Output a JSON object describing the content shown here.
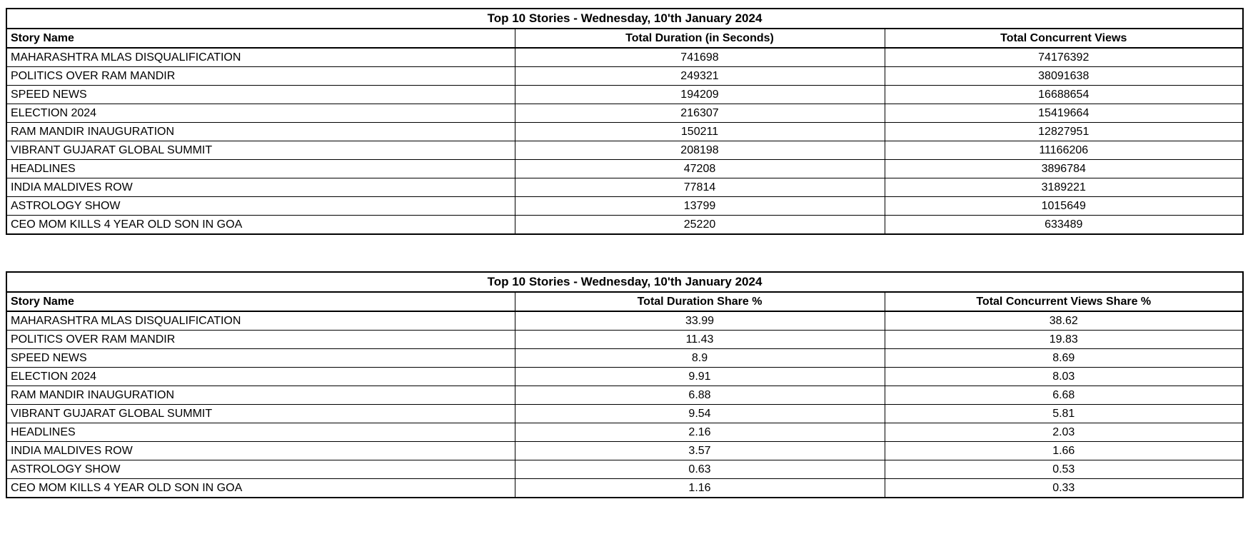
{
  "page": {
    "background_color": "#ffffff",
    "table_border_color": "#000000",
    "text_color": "#000000"
  },
  "tables": [
    {
      "title": "Top 10 Stories - Wednesday, 10'th January 2024",
      "columns": [
        "Story Name",
        "Total Duration (in Seconds)",
        "Total Concurrent Views"
      ],
      "rows": [
        [
          "MAHARASHTRA MLAS DISQUALIFICATION",
          "741698",
          "74176392"
        ],
        [
          "POLITICS OVER RAM MANDIR",
          "249321",
          "38091638"
        ],
        [
          "SPEED NEWS",
          "194209",
          "16688654"
        ],
        [
          "ELECTION 2024",
          "216307",
          "15419664"
        ],
        [
          "RAM MANDIR INAUGURATION",
          "150211",
          "12827951"
        ],
        [
          "VIBRANT GUJARAT GLOBAL SUMMIT",
          "208198",
          "11166206"
        ],
        [
          "HEADLINES",
          "47208",
          "3896784"
        ],
        [
          "INDIA MALDIVES ROW",
          "77814",
          "3189221"
        ],
        [
          "ASTROLOGY SHOW",
          "13799",
          "1015649"
        ],
        [
          "CEO MOM KILLS 4 YEAR OLD SON IN GOA",
          "25220",
          "633489"
        ]
      ]
    },
    {
      "title": "Top 10 Stories - Wednesday, 10'th January 2024",
      "columns": [
        "Story Name",
        "Total Duration Share %",
        "Total Concurrent Views Share %"
      ],
      "rows": [
        [
          "MAHARASHTRA MLAS DISQUALIFICATION",
          "33.99",
          "38.62"
        ],
        [
          "POLITICS OVER RAM MANDIR",
          "11.43",
          "19.83"
        ],
        [
          "SPEED NEWS",
          "8.9",
          "8.69"
        ],
        [
          "ELECTION 2024",
          "9.91",
          "8.03"
        ],
        [
          "RAM MANDIR INAUGURATION",
          "6.88",
          "6.68"
        ],
        [
          "VIBRANT GUJARAT GLOBAL SUMMIT",
          "9.54",
          "5.81"
        ],
        [
          "HEADLINES",
          "2.16",
          "2.03"
        ],
        [
          "INDIA MALDIVES ROW",
          "3.57",
          "1.66"
        ],
        [
          "ASTROLOGY SHOW",
          "0.63",
          "0.53"
        ],
        [
          "CEO MOM KILLS 4 YEAR OLD SON IN GOA",
          "1.16",
          "0.33"
        ]
      ]
    }
  ]
}
